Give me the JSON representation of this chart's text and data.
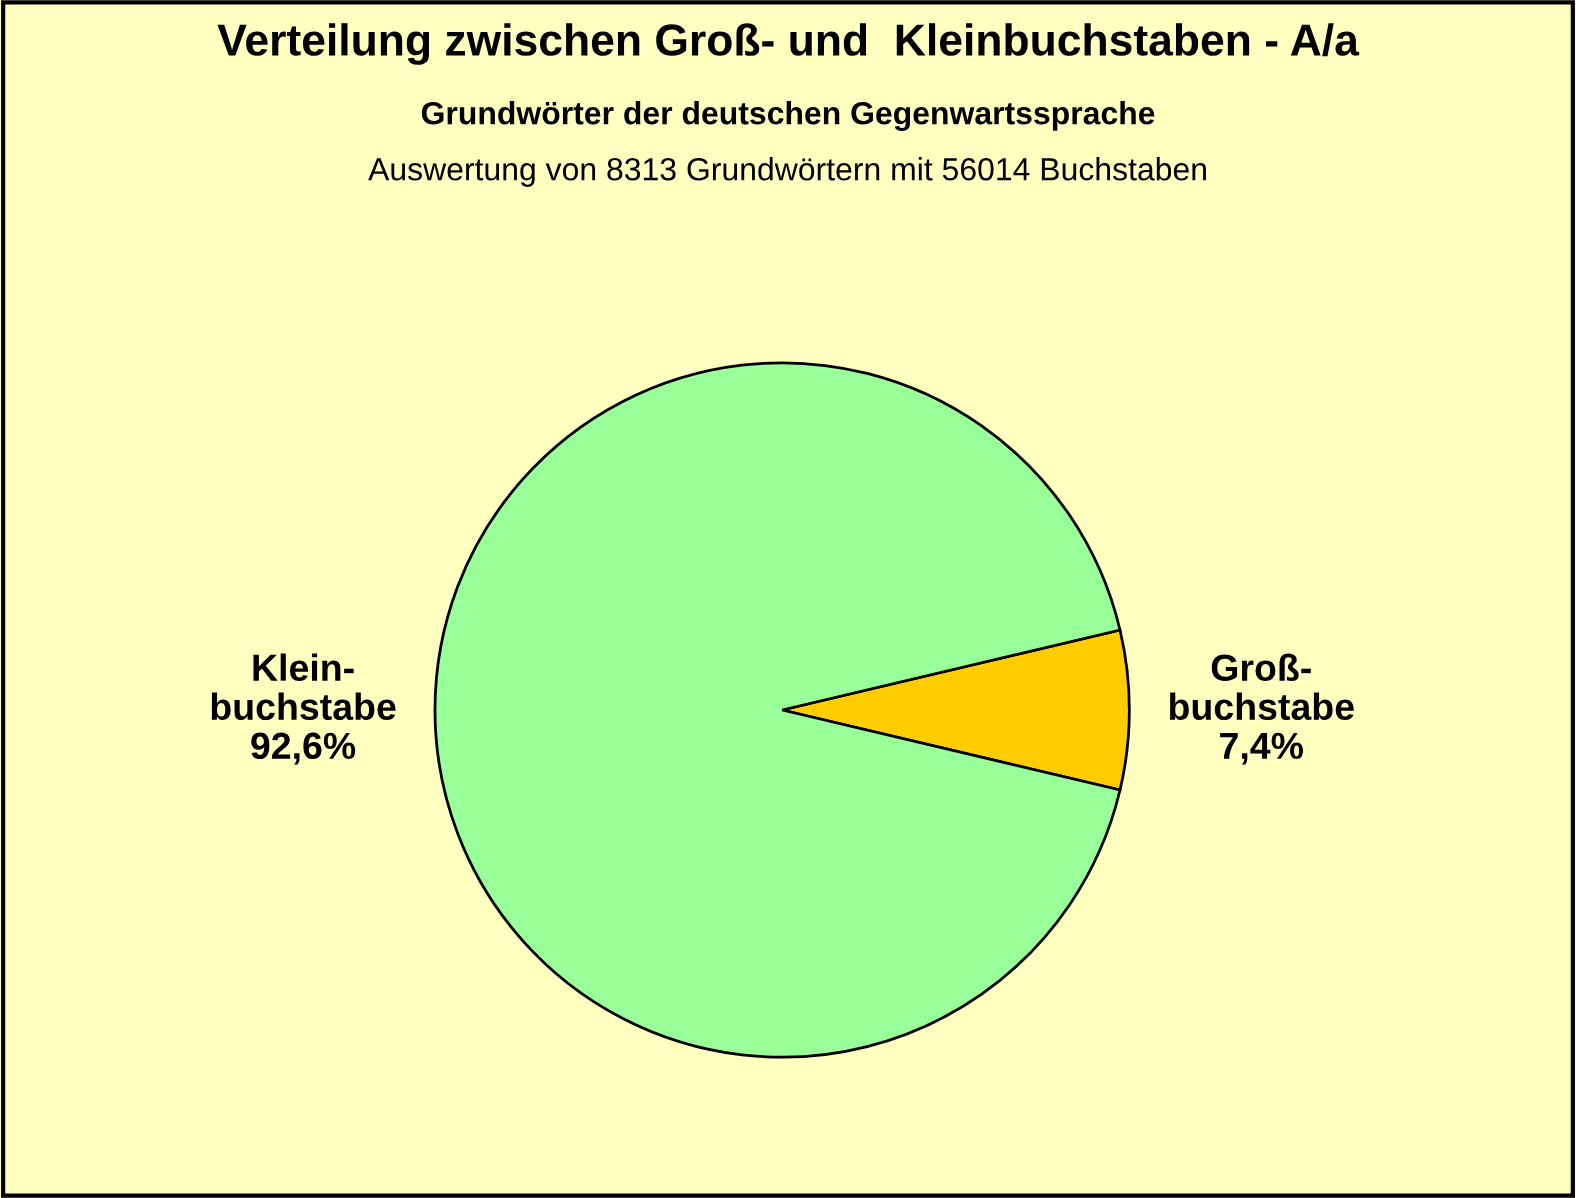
{
  "chart_data": {
    "type": "pie",
    "title": "Verteilung zwischen Groß- und  Kleinbuchstaben - A/a",
    "subtitle": "Grundwörter der deutschen Gegenwartssprache",
    "annotations": [
      "Auswertung von 8313 Grundwörtern mit 56014 Buchstaben"
    ],
    "categories": [
      "Groß-\nbuchstabe",
      "Klein-\nbuchstabe"
    ],
    "values": [
      7.4,
      92.6
    ],
    "value_labels": [
      "7,4%",
      "92,6%"
    ],
    "colors": [
      "#ffcc00",
      "#99ff99"
    ],
    "legend": false
  }
}
